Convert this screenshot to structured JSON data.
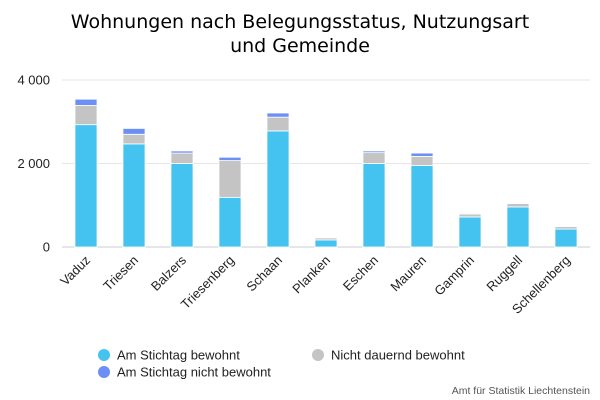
{
  "chart_data": {
    "type": "bar",
    "stacked": true,
    "title_line1": "Wohnungen nach Belegungsstatus, Nutzungsart",
    "title_line2": "und Gemeinde",
    "categories": [
      "Vaduz",
      "Triesen",
      "Balzers",
      "Triesenberg",
      "Schaan",
      "Planken",
      "Eschen",
      "Mauren",
      "Gamprin",
      "Ruggell",
      "Schellenberg"
    ],
    "series": [
      {
        "name": "Am Stichtag bewohnt",
        "color": "#45c3f0",
        "values": [
          2930,
          2470,
          2000,
          1190,
          2780,
          170,
          2000,
          1950,
          720,
          960,
          430
        ]
      },
      {
        "name": "Nicht dauernd bewohnt",
        "color": "#c4c4c4",
        "values": [
          460,
          230,
          250,
          880,
          330,
          50,
          260,
          220,
          70,
          80,
          60
        ]
      },
      {
        "name": "Am Stichtag nicht bewohnt",
        "color": "#6b8ff5",
        "values": [
          150,
          140,
          50,
          80,
          100,
          10,
          40,
          80,
          20,
          20,
          10
        ]
      }
    ],
    "ylim": [
      0,
      4000
    ],
    "yticks": [
      0,
      2000,
      4000
    ],
    "ytick_labels": [
      "0",
      "2 000",
      "4 000"
    ],
    "grid": true,
    "legend_position": "bottom"
  },
  "credit": "Amt für Statistik Liechtenstein"
}
